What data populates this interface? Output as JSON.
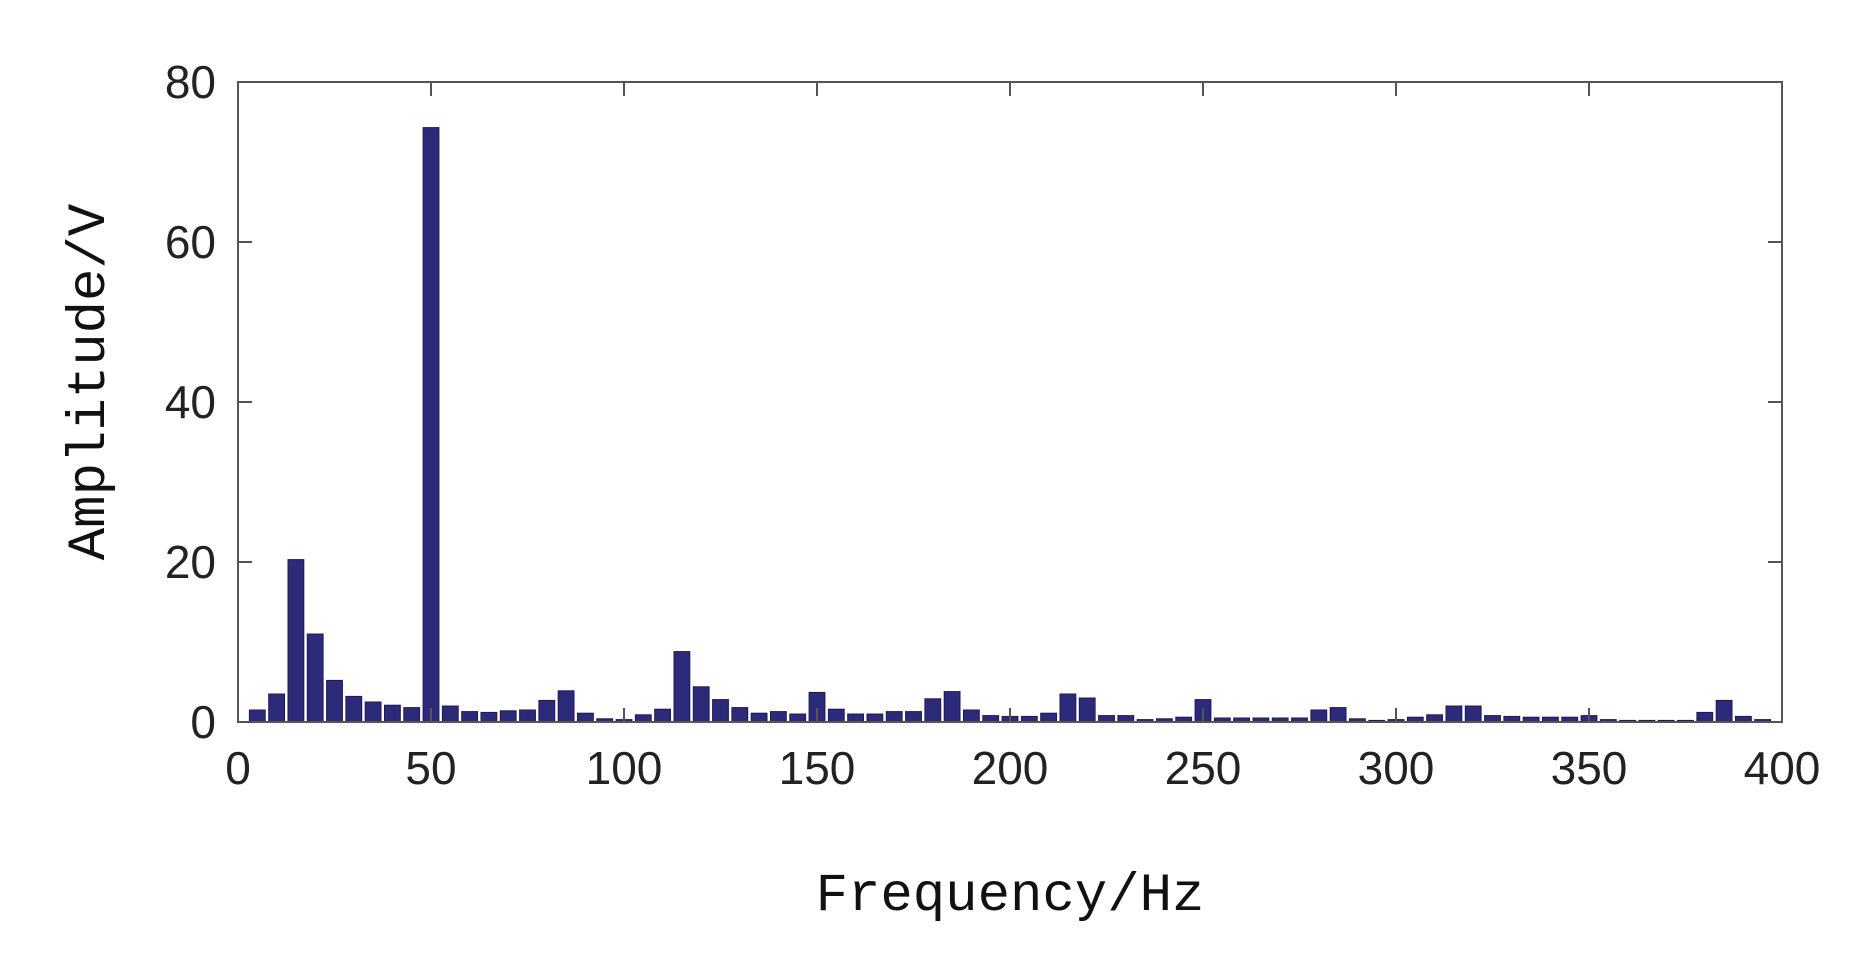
{
  "chart_data": {
    "type": "bar",
    "title": "",
    "xlabel": "Frequency/Hz",
    "ylabel": "Amplitude/V",
    "xlim": [
      0,
      400
    ],
    "ylim": [
      0,
      80
    ],
    "xticks": [
      0,
      50,
      100,
      150,
      200,
      250,
      300,
      350,
      400
    ],
    "yticks": [
      0,
      20,
      40,
      60,
      80
    ],
    "grid": false,
    "bar_color": "#2e2a7a",
    "x": [
      5,
      10,
      15,
      20,
      25,
      30,
      35,
      40,
      45,
      50,
      55,
      60,
      65,
      70,
      75,
      80,
      85,
      90,
      95,
      100,
      105,
      110,
      115,
      120,
      125,
      130,
      135,
      140,
      145,
      150,
      155,
      160,
      165,
      170,
      175,
      180,
      185,
      190,
      195,
      200,
      205,
      210,
      215,
      220,
      225,
      230,
      235,
      240,
      245,
      250,
      255,
      260,
      265,
      270,
      275,
      280,
      285,
      290,
      295,
      300,
      305,
      310,
      315,
      320,
      325,
      330,
      335,
      340,
      345,
      350,
      355,
      360,
      365,
      370,
      375,
      380,
      385,
      390,
      395
    ],
    "values": [
      1.5,
      3.5,
      20.3,
      11,
      5.2,
      3.2,
      2.5,
      2.1,
      1.8,
      74.3,
      2,
      1.3,
      1.2,
      1.4,
      1.5,
      2.7,
      3.9,
      1.1,
      0.4,
      0.3,
      0.9,
      1.6,
      8.8,
      4.4,
      2.8,
      1.8,
      1.1,
      1.3,
      1,
      3.7,
      1.6,
      1,
      1,
      1.3,
      1.3,
      2.9,
      3.8,
      1.5,
      0.8,
      0.7,
      0.7,
      1.1,
      3.5,
      3,
      0.8,
      0.8,
      0.3,
      0.4,
      0.6,
      2.8,
      0.5,
      0.5,
      0.5,
      0.5,
      0.5,
      1.5,
      1.8,
      0.4,
      0.2,
      0.3,
      0.6,
      0.9,
      2,
      2,
      0.8,
      0.7,
      0.6,
      0.6,
      0.6,
      0.8,
      0.3,
      0.2,
      0.2,
      0.2,
      0.2,
      1.2,
      2.7,
      0.7,
      0.3
    ]
  }
}
